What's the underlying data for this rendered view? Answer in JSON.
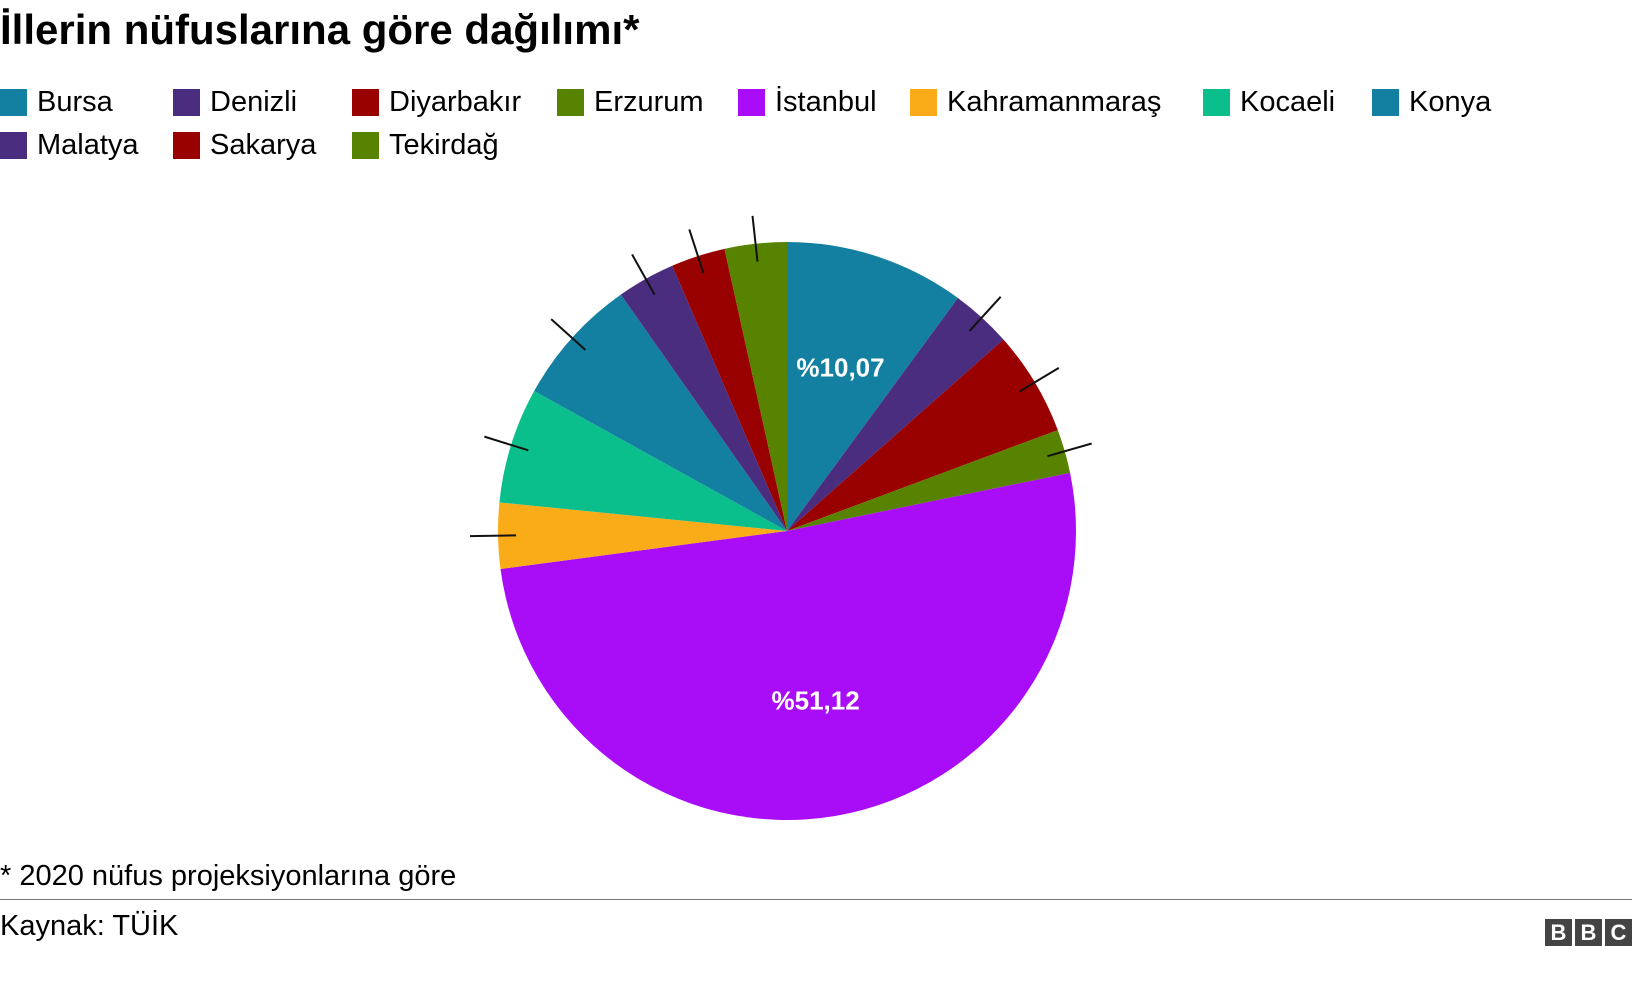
{
  "title": "İllerin nüfuslarına göre dağılımı*",
  "footnote": "* 2020 nüfus projeksiyonlarına göre",
  "source": "Kaynak: TÜİK",
  "logo": [
    "B",
    "B",
    "C"
  ],
  "chart_data": {
    "type": "pie",
    "title": "İllerin nüfuslarına göre dağılımı*",
    "legend_position": "top",
    "start_angle_deg": 0,
    "direction": "clockwise",
    "categories": [
      "Bursa",
      "Denizli",
      "Diyarbakır",
      "Erzurum",
      "İstanbul",
      "Kahramanmaraş",
      "Kocaeli",
      "Konya",
      "Malatya",
      "Sakarya",
      "Tekirdağ"
    ],
    "values": [
      10.07,
      3.4,
      5.85,
      2.45,
      51.12,
      3.67,
      6.47,
      7.2,
      3.25,
      3.03,
      3.47
    ],
    "colors": [
      "#1380A1",
      "#4B2D7F",
      "#990000",
      "#588300",
      "#A90DF7",
      "#FAAB18",
      "#0BBF8C",
      "#1380A1",
      "#4B2D7F",
      "#990000",
      "#588300"
    ],
    "data_labels": {
      "Bursa": "%10,07",
      "İstanbul": "%51,12"
    }
  }
}
